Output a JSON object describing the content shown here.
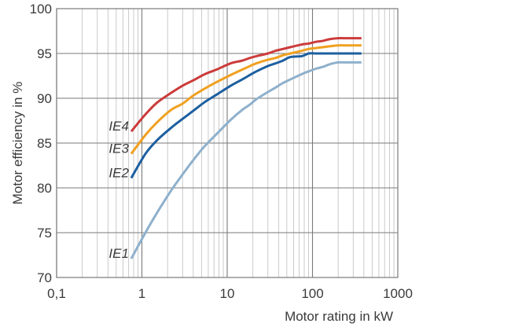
{
  "chart_data": {
    "type": "line",
    "xlabel": "Motor rating in kW",
    "ylabel": "Motor efficiency in %",
    "x_scale": "log",
    "xlim": [
      0.1,
      1000
    ],
    "ylim": [
      70,
      100
    ],
    "x_ticks": [
      {
        "value": 0.1,
        "label": "0,1"
      },
      {
        "value": 1,
        "label": "1"
      },
      {
        "value": 10,
        "label": "10"
      },
      {
        "value": 100,
        "label": "100"
      },
      {
        "value": 1000,
        "label": "1000"
      }
    ],
    "y_ticks": [
      {
        "value": 70,
        "label": "70"
      },
      {
        "value": 75,
        "label": "75"
      },
      {
        "value": 80,
        "label": "80"
      },
      {
        "value": 85,
        "label": "85"
      },
      {
        "value": 90,
        "label": "90"
      },
      {
        "value": 95,
        "label": "95"
      },
      {
        "value": 100,
        "label": "100"
      }
    ],
    "grid": true,
    "series": [
      {
        "name": "IE4",
        "color": "#cc3b3b",
        "x": [
          0.75,
          1.1,
          1.5,
          2.2,
          3,
          4,
          5.5,
          7.5,
          11,
          15,
          18.5,
          22,
          30,
          37,
          45,
          55,
          75,
          90,
          110,
          132,
          160,
          200,
          250,
          315,
          375
        ],
        "y": [
          86.3,
          88.2,
          89.5,
          90.6,
          91.4,
          92.0,
          92.7,
          93.2,
          93.9,
          94.2,
          94.5,
          94.7,
          95.0,
          95.3,
          95.5,
          95.7,
          96.0,
          96.1,
          96.3,
          96.4,
          96.6,
          96.7,
          96.7,
          96.7,
          96.7
        ]
      },
      {
        "name": "IE3",
        "color": "#f0a020",
        "x": [
          0.75,
          1.1,
          1.5,
          2.2,
          3,
          4,
          5.5,
          7.5,
          11,
          15,
          18.5,
          22,
          30,
          37,
          45,
          55,
          75,
          90,
          110,
          132,
          160,
          200,
          250,
          315,
          375
        ],
        "y": [
          83.8,
          85.9,
          87.3,
          88.7,
          89.4,
          90.3,
          91.1,
          91.8,
          92.6,
          93.2,
          93.6,
          93.9,
          94.3,
          94.5,
          94.8,
          95.0,
          95.3,
          95.5,
          95.6,
          95.7,
          95.8,
          95.9,
          95.9,
          95.9,
          95.9
        ]
      },
      {
        "name": "IE2",
        "color": "#1c5fa0",
        "x": [
          0.75,
          1.1,
          1.5,
          2.2,
          3,
          4,
          5.5,
          7.5,
          11,
          15,
          18.5,
          22,
          30,
          37,
          45,
          55,
          75,
          90,
          110,
          132,
          160,
          200,
          250,
          315,
          375
        ],
        "y": [
          81.1,
          83.8,
          85.3,
          86.7,
          87.7,
          88.6,
          89.6,
          90.4,
          91.4,
          92.1,
          92.6,
          93.0,
          93.6,
          93.9,
          94.2,
          94.6,
          94.7,
          95.0,
          95.0,
          95.0,
          95.0,
          95.0,
          95.0,
          95.0,
          95.0
        ]
      },
      {
        "name": "IE1",
        "color": "#8eb0cc",
        "x": [
          0.75,
          1.1,
          1.5,
          2.2,
          3,
          4,
          5.5,
          7.5,
          11,
          15,
          18.5,
          22,
          30,
          37,
          45,
          55,
          75,
          90,
          110,
          132,
          160,
          200,
          250,
          315,
          375
        ],
        "y": [
          72.1,
          75.0,
          77.2,
          79.7,
          81.5,
          83.1,
          84.7,
          86.0,
          87.6,
          88.7,
          89.3,
          89.9,
          90.7,
          91.2,
          91.7,
          92.1,
          92.7,
          93.0,
          93.3,
          93.5,
          93.8,
          94.0,
          94.0,
          94.0,
          94.0
        ]
      }
    ]
  }
}
